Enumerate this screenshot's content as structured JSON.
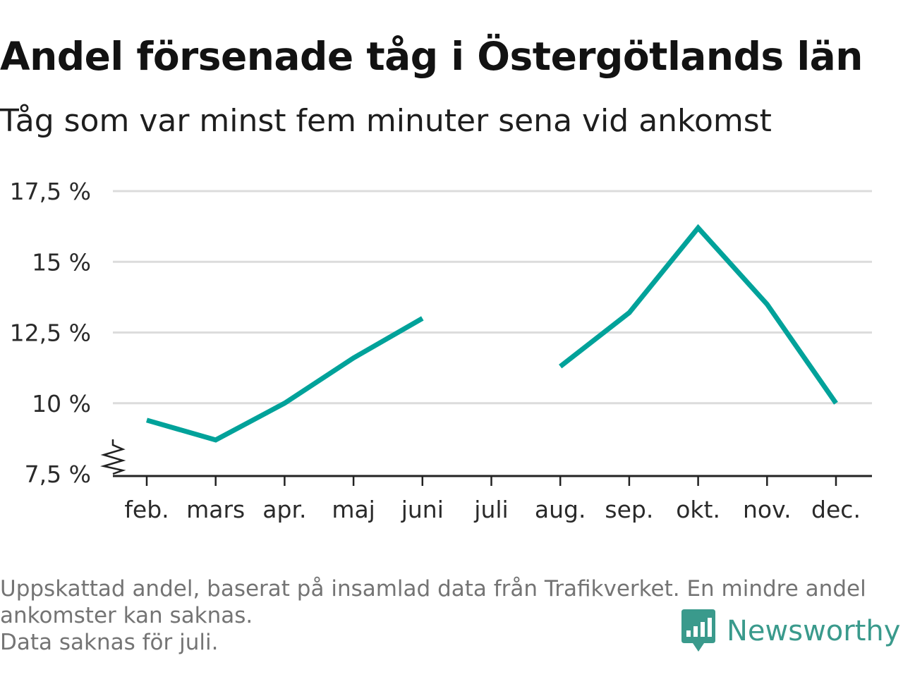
{
  "header": {
    "title": "Andel försenade tåg i Östergötlands län",
    "subtitle": "Tåg som var minst fem minuter sena vid ankomst"
  },
  "chart_data": {
    "type": "line",
    "categories": [
      "feb.",
      "mars",
      "apr.",
      "maj",
      "juni",
      "juli",
      "aug.",
      "sep.",
      "okt.",
      "nov.",
      "dec."
    ],
    "series": [
      {
        "values": [
          9.4,
          8.7,
          10.0,
          11.6,
          13.0,
          null,
          11.3,
          13.2,
          16.2,
          13.5,
          10.0
        ]
      }
    ],
    "yticks": [
      7.5,
      10,
      12.5,
      15,
      17.5
    ],
    "ytick_labels": [
      "7,5 %",
      "10 %",
      "12,5 %",
      "15 %",
      "17,5 %"
    ],
    "ylim": [
      7.5,
      17.5
    ],
    "y_axis_broken": true,
    "grid": true,
    "line_color": "#00a29a"
  },
  "footer": {
    "note_line1": "Uppskattad andel, baserat på insamlad data från Trafikverket. En mindre andel",
    "note_line2": "ankomster kan saknas.",
    "note_line3": "Data saknas för juli.",
    "brand": "Newsworthy",
    "brand_icon": "newsworthy-logo-icon",
    "brand_color": "#3a9a8c"
  }
}
